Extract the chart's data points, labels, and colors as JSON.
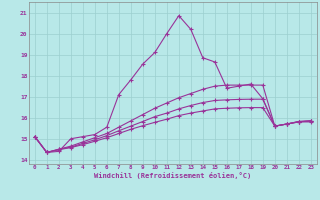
{
  "title": "",
  "xlabel": "Windchill (Refroidissement éolien,°C)",
  "ylabel": "",
  "bg_color": "#b8e8e8",
  "line_color": "#993399",
  "xlim": [
    -0.5,
    23.5
  ],
  "ylim": [
    13.8,
    21.5
  ],
  "yticks": [
    14,
    15,
    16,
    17,
    18,
    19,
    20,
    21
  ],
  "xticks": [
    0,
    1,
    2,
    3,
    4,
    5,
    6,
    7,
    8,
    9,
    10,
    11,
    12,
    13,
    14,
    15,
    16,
    17,
    18,
    19,
    20,
    21,
    22,
    23
  ],
  "grid_color": "#9ccfcf",
  "line1_x": [
    0,
    1,
    2,
    3,
    4,
    5,
    6,
    7,
    8,
    9,
    10,
    11,
    12,
    13,
    14,
    15,
    16,
    17,
    18,
    19,
    20,
    21,
    22,
    23
  ],
  "line1_y": [
    15.1,
    14.35,
    14.4,
    15.0,
    15.1,
    15.2,
    15.55,
    17.1,
    17.8,
    18.55,
    19.1,
    20.0,
    20.85,
    20.2,
    18.85,
    18.65,
    17.4,
    17.5,
    17.6,
    16.9,
    15.6,
    15.7,
    15.8,
    15.8
  ],
  "line2_x": [
    0,
    1,
    2,
    3,
    4,
    5,
    6,
    7,
    8,
    9,
    10,
    11,
    12,
    13,
    14,
    15,
    16,
    17,
    18,
    19,
    20,
    21,
    22,
    23
  ],
  "line2_y": [
    15.1,
    14.35,
    14.5,
    14.65,
    14.85,
    15.05,
    15.25,
    15.55,
    15.85,
    16.15,
    16.45,
    16.7,
    16.95,
    17.15,
    17.35,
    17.5,
    17.55,
    17.55,
    17.55,
    17.55,
    15.6,
    15.7,
    15.8,
    15.85
  ],
  "line3_x": [
    0,
    1,
    2,
    3,
    4,
    5,
    6,
    7,
    8,
    9,
    10,
    11,
    12,
    13,
    14,
    15,
    16,
    17,
    18,
    19,
    20,
    21,
    22,
    23
  ],
  "line3_y": [
    15.1,
    14.35,
    14.5,
    14.6,
    14.78,
    14.95,
    15.15,
    15.38,
    15.6,
    15.82,
    16.05,
    16.22,
    16.42,
    16.58,
    16.72,
    16.82,
    16.85,
    16.87,
    16.88,
    16.88,
    15.6,
    15.7,
    15.82,
    15.85
  ],
  "line4_x": [
    0,
    1,
    2,
    3,
    4,
    5,
    6,
    7,
    8,
    9,
    10,
    11,
    12,
    13,
    14,
    15,
    16,
    17,
    18,
    19,
    20,
    21,
    22,
    23
  ],
  "line4_y": [
    15.1,
    14.35,
    14.48,
    14.58,
    14.72,
    14.88,
    15.05,
    15.25,
    15.45,
    15.62,
    15.78,
    15.93,
    16.1,
    16.22,
    16.32,
    16.42,
    16.45,
    16.47,
    16.48,
    16.48,
    15.6,
    15.7,
    15.82,
    15.85
  ],
  "marker": "+",
  "markersize": 3,
  "linewidth": 0.8
}
